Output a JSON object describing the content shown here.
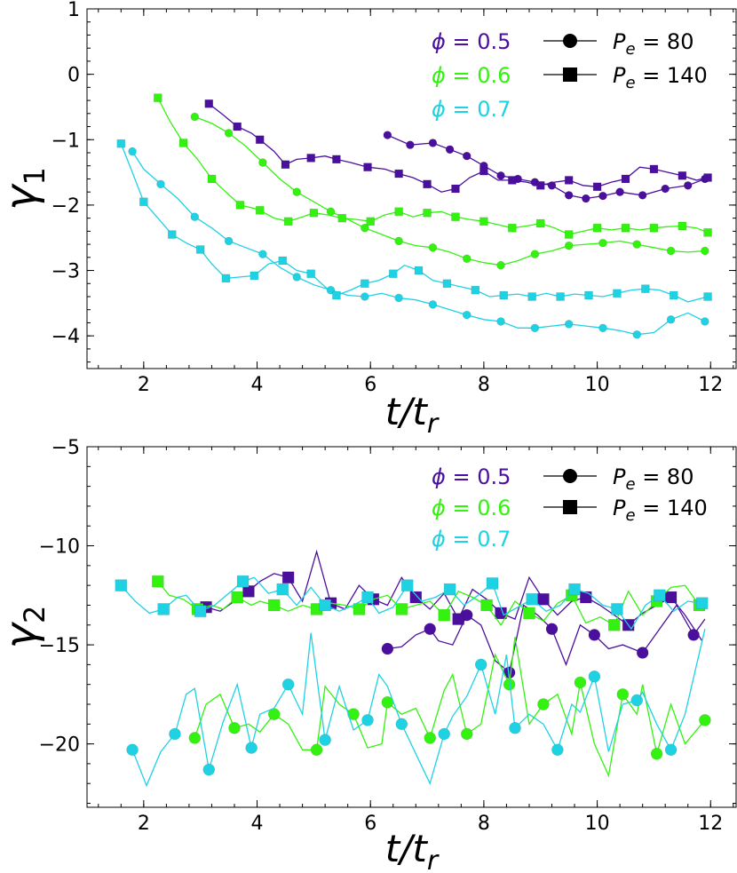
{
  "colors": {
    "phi_0_5": "#4b0f9e",
    "phi_0_6": "#33f20f",
    "phi_0_7": "#1ed2e3",
    "axis": "#000000"
  },
  "legend": {
    "phi_labels": [
      "ϕ = 0.5",
      "ϕ = 0.6",
      "ϕ = 0.7"
    ],
    "pe_labels": [
      "P_e = 80",
      "P_e = 140"
    ],
    "pe_markers": [
      "circle",
      "square"
    ]
  },
  "chart_data": [
    {
      "type": "line",
      "title": "",
      "xlabel": "t/t_r",
      "ylabel": "γ_1",
      "xlim": [
        1.0,
        12.45
      ],
      "ylim": [
        -4.5,
        1.0
      ],
      "xticks": [
        2,
        4,
        6,
        8,
        10,
        12
      ],
      "yticks": [
        1,
        0,
        -1,
        -2,
        -3,
        -4
      ],
      "series": [
        {
          "phi": "0.5",
          "pe": "80",
          "marker": "circle",
          "color": "#4b0f9e",
          "x": [
            6.3,
            6.7,
            7.1,
            7.4,
            7.7,
            8.0,
            8.3,
            8.6,
            8.9,
            9.2,
            9.5,
            9.8,
            10.1,
            10.4,
            10.8,
            11.2,
            11.6,
            11.9
          ],
          "y": [
            -0.93,
            -1.08,
            -1.05,
            -1.15,
            -1.25,
            -1.4,
            -1.55,
            -1.6,
            -1.65,
            -1.7,
            -1.85,
            -1.9,
            -1.86,
            -1.8,
            -1.85,
            -1.75,
            -1.7,
            -1.6
          ]
        },
        {
          "phi": "0.5",
          "pe": "140",
          "marker": "square",
          "color": "#4b0f9e",
          "x": [
            3.15,
            3.4,
            3.65,
            3.9,
            4.05,
            4.3,
            4.5,
            4.7,
            4.95,
            5.2,
            5.4,
            5.65,
            5.95,
            6.25,
            6.5,
            6.75,
            7.0,
            7.25,
            7.5,
            7.75,
            8.0,
            8.25,
            8.5,
            8.75,
            9.0,
            9.25,
            9.5,
            9.75,
            10.0,
            10.25,
            10.5,
            10.75,
            11.0,
            11.25,
            11.5,
            11.75,
            11.95
          ],
          "y": [
            -0.45,
            -0.62,
            -0.8,
            -0.9,
            -1.0,
            -1.18,
            -1.38,
            -1.3,
            -1.28,
            -1.25,
            -1.3,
            -1.35,
            -1.42,
            -1.45,
            -1.52,
            -1.58,
            -1.68,
            -1.8,
            -1.75,
            -1.58,
            -1.48,
            -1.62,
            -1.62,
            -1.65,
            -1.7,
            -1.65,
            -1.62,
            -1.7,
            -1.72,
            -1.65,
            -1.6,
            -1.42,
            -1.45,
            -1.5,
            -1.55,
            -1.62,
            -1.58
          ]
        },
        {
          "phi": "0.6",
          "pe": "80",
          "marker": "circle",
          "color": "#33f20f",
          "x": [
            2.9,
            3.2,
            3.5,
            3.8,
            4.1,
            4.4,
            4.7,
            5.0,
            5.3,
            5.6,
            5.9,
            6.2,
            6.5,
            6.8,
            7.1,
            7.4,
            7.7,
            8.0,
            8.3,
            8.6,
            8.9,
            9.2,
            9.5,
            9.8,
            10.1,
            10.4,
            10.7,
            11.0,
            11.3,
            11.6,
            11.9
          ],
          "y": [
            -0.65,
            -0.75,
            -0.9,
            -1.1,
            -1.35,
            -1.6,
            -1.8,
            -1.95,
            -2.1,
            -2.22,
            -2.35,
            -2.45,
            -2.55,
            -2.62,
            -2.65,
            -2.72,
            -2.82,
            -2.88,
            -2.92,
            -2.85,
            -2.75,
            -2.7,
            -2.62,
            -2.6,
            -2.58,
            -2.55,
            -2.6,
            -2.65,
            -2.7,
            -2.72,
            -2.7
          ]
        },
        {
          "phi": "0.6",
          "pe": "140",
          "marker": "square",
          "color": "#33f20f",
          "x": [
            2.25,
            2.45,
            2.7,
            2.95,
            3.2,
            3.45,
            3.7,
            3.95,
            4.05,
            4.3,
            4.55,
            4.8,
            5.0,
            5.25,
            5.5,
            5.75,
            6.0,
            6.25,
            6.5,
            6.75,
            7.0,
            7.25,
            7.5,
            7.75,
            8.0,
            8.25,
            8.5,
            8.75,
            9.0,
            9.25,
            9.5,
            9.75,
            10.0,
            10.25,
            10.5,
            10.75,
            11.0,
            11.25,
            11.5,
            11.75,
            11.95
          ],
          "y": [
            -0.36,
            -0.7,
            -1.05,
            -1.3,
            -1.6,
            -1.8,
            -2.0,
            -2.05,
            -2.08,
            -2.2,
            -2.25,
            -2.18,
            -2.12,
            -2.15,
            -2.2,
            -2.22,
            -2.25,
            -2.15,
            -2.1,
            -2.18,
            -2.12,
            -2.1,
            -2.18,
            -2.22,
            -2.25,
            -2.3,
            -2.35,
            -2.32,
            -2.28,
            -2.35,
            -2.45,
            -2.4,
            -2.35,
            -2.38,
            -2.35,
            -2.38,
            -2.35,
            -2.33,
            -2.32,
            -2.35,
            -2.42
          ]
        },
        {
          "phi": "0.7",
          "pe": "80",
          "marker": "circle",
          "color": "#1ed2e3",
          "x": [
            1.8,
            2.0,
            2.3,
            2.6,
            2.9,
            3.2,
            3.5,
            3.8,
            4.1,
            4.4,
            4.7,
            5.0,
            5.3,
            5.6,
            5.9,
            6.2,
            6.5,
            6.8,
            7.1,
            7.4,
            7.7,
            8.0,
            8.3,
            8.6,
            8.9,
            9.2,
            9.5,
            9.8,
            10.1,
            10.4,
            10.7,
            11.0,
            11.3,
            11.6,
            11.9
          ],
          "y": [
            -1.18,
            -1.45,
            -1.68,
            -1.9,
            -2.18,
            -2.35,
            -2.55,
            -2.65,
            -2.75,
            -2.95,
            -3.1,
            -3.22,
            -3.3,
            -3.38,
            -3.4,
            -3.35,
            -3.42,
            -3.45,
            -3.52,
            -3.6,
            -3.68,
            -3.75,
            -3.78,
            -3.88,
            -3.88,
            -3.85,
            -3.82,
            -3.85,
            -3.88,
            -3.92,
            -3.98,
            -3.95,
            -3.75,
            -3.65,
            -3.78
          ]
        },
        {
          "phi": "0.7",
          "pe": "140",
          "marker": "square",
          "color": "#1ed2e3",
          "x": [
            1.6,
            1.8,
            2.0,
            2.25,
            2.5,
            2.75,
            3.0,
            3.2,
            3.45,
            3.7,
            3.95,
            4.2,
            4.45,
            4.7,
            4.95,
            5.2,
            5.4,
            5.65,
            5.9,
            6.15,
            6.4,
            6.6,
            6.85,
            7.1,
            7.35,
            7.6,
            7.85,
            8.1,
            8.35,
            8.6,
            8.85,
            9.1,
            9.35,
            9.6,
            9.85,
            10.1,
            10.35,
            10.6,
            10.85,
            11.1,
            11.35,
            11.6,
            11.95
          ],
          "y": [
            -1.06,
            -1.5,
            -1.95,
            -2.2,
            -2.45,
            -2.58,
            -2.68,
            -2.9,
            -3.12,
            -3.1,
            -3.08,
            -2.9,
            -2.85,
            -3.0,
            -3.05,
            -3.25,
            -3.38,
            -3.3,
            -3.2,
            -3.15,
            -3.05,
            -2.92,
            -3.0,
            -3.15,
            -3.2,
            -3.25,
            -3.3,
            -3.4,
            -3.38,
            -3.36,
            -3.4,
            -3.35,
            -3.4,
            -3.36,
            -3.38,
            -3.4,
            -3.35,
            -3.3,
            -3.28,
            -3.3,
            -3.38,
            -3.48,
            -3.4
          ]
        }
      ]
    },
    {
      "type": "line",
      "title": "",
      "xlabel": "t/t_r",
      "ylabel": "γ_2",
      "xlim": [
        1.0,
        12.45
      ],
      "ylim": [
        -23.2,
        -5.0
      ],
      "xticks": [
        2,
        4,
        6,
        8,
        10,
        12
      ],
      "yticks": [
        -5,
        -10,
        -15,
        -20
      ],
      "series": [
        {
          "phi": "0.5",
          "pe": "80",
          "marker": "circle",
          "color": "#4b0f9e",
          "x": [
            6.3,
            6.55,
            6.8,
            7.05,
            7.2,
            7.45,
            7.7,
            7.95,
            8.2,
            8.45,
            8.7,
            8.95,
            9.2,
            9.45,
            9.7,
            9.95,
            10.2,
            10.45,
            10.8,
            11.1,
            11.4,
            11.7,
            11.9
          ],
          "y": [
            -15.2,
            -15.1,
            -14.5,
            -14.2,
            -14.8,
            -15.0,
            -13.5,
            -14.0,
            -15.8,
            -16.4,
            -13.0,
            -13.5,
            -14.2,
            -16.0,
            -14.0,
            -14.5,
            -15.2,
            -15.0,
            -15.4,
            -14.2,
            -13.0,
            -14.5,
            -13.7
          ]
        },
        {
          "phi": "0.5",
          "pe": "140",
          "marker": "square",
          "color": "#4b0f9e",
          "x": [
            3.1,
            3.35,
            3.6,
            3.85,
            4.05,
            4.3,
            4.55,
            4.8,
            5.05,
            5.3,
            5.55,
            5.8,
            6.05,
            6.3,
            6.55,
            6.8,
            7.05,
            7.3,
            7.55,
            7.8,
            8.05,
            8.3,
            8.55,
            8.8,
            9.05,
            9.3,
            9.55,
            9.8,
            10.05,
            10.3,
            10.55,
            10.8,
            11.05,
            11.3,
            11.55,
            11.85
          ],
          "y": [
            -13.1,
            -13.3,
            -12.8,
            -12.3,
            -11.8,
            -11.4,
            -11.6,
            -12.8,
            -10.3,
            -12.9,
            -13.2,
            -12.0,
            -12.7,
            -13.0,
            -11.6,
            -12.6,
            -13.2,
            -12.4,
            -13.7,
            -12.2,
            -12.7,
            -13.4,
            -13.7,
            -11.6,
            -12.7,
            -13.5,
            -12.8,
            -12.6,
            -13.0,
            -13.5,
            -14.0,
            -13.4,
            -13.0,
            -12.6,
            -13.5,
            -14.8
          ]
        },
        {
          "phi": "0.6",
          "pe": "80",
          "marker": "circle",
          "color": "#33f20f",
          "x": [
            2.9,
            3.1,
            3.35,
            3.6,
            3.85,
            4.05,
            4.3,
            4.55,
            4.8,
            5.05,
            5.2,
            5.45,
            5.7,
            5.95,
            6.2,
            6.3,
            6.55,
            6.8,
            7.05,
            7.3,
            7.45,
            7.7,
            7.95,
            8.2,
            8.45,
            8.55,
            8.8,
            9.05,
            9.3,
            9.55,
            9.7,
            9.95,
            10.2,
            10.45,
            10.7,
            10.8,
            11.05,
            11.3,
            11.55,
            11.9
          ],
          "y": [
            -19.7,
            -18.0,
            -17.5,
            -19.2,
            -19.0,
            -19.4,
            -18.5,
            -19.0,
            -20.3,
            -20.3,
            -17.1,
            -18.0,
            -18.5,
            -20.2,
            -20.0,
            -17.9,
            -18.5,
            -18.2,
            -19.7,
            -17.3,
            -16.5,
            -19.5,
            -19.0,
            -15.5,
            -17.0,
            -14.6,
            -19.0,
            -18.0,
            -17.5,
            -19.5,
            -16.9,
            -20.0,
            -21.6,
            -17.5,
            -18.5,
            -17.0,
            -20.5,
            -18.0,
            -20.0,
            -18.8
          ]
        },
        {
          "phi": "0.6",
          "pe": "140",
          "marker": "square",
          "color": "#33f20f",
          "x": [
            2.25,
            2.45,
            2.7,
            2.95,
            3.2,
            3.4,
            3.65,
            3.9,
            4.05,
            4.3,
            4.55,
            4.8,
            5.05,
            5.3,
            5.55,
            5.8,
            6.05,
            6.3,
            6.55,
            6.8,
            7.05,
            7.3,
            7.55,
            7.8,
            8.05,
            8.3,
            8.55,
            8.8,
            9.05,
            9.3,
            9.55,
            9.8,
            10.05,
            10.3,
            10.55,
            10.8,
            11.05,
            11.3,
            11.55,
            11.8
          ],
          "y": [
            -11.8,
            -12.5,
            -12.7,
            -13.2,
            -13.0,
            -13.2,
            -12.6,
            -13.0,
            -12.8,
            -13.0,
            -13.3,
            -13.0,
            -13.2,
            -12.9,
            -13.0,
            -13.2,
            -12.7,
            -12.5,
            -13.2,
            -13.0,
            -12.8,
            -13.5,
            -12.3,
            -12.6,
            -13.0,
            -14.0,
            -12.8,
            -13.4,
            -13.8,
            -12.9,
            -12.5,
            -13.9,
            -13.6,
            -14.0,
            -12.3,
            -13.5,
            -12.8,
            -12.1,
            -12.0,
            -13.0
          ]
        },
        {
          "phi": "0.7",
          "pe": "80",
          "marker": "circle",
          "color": "#1ed2e3",
          "x": [
            1.8,
            2.05,
            2.3,
            2.55,
            2.75,
            2.9,
            3.15,
            3.4,
            3.65,
            3.9,
            4.05,
            4.3,
            4.55,
            4.8,
            4.95,
            5.2,
            5.45,
            5.7,
            5.95,
            6.15,
            6.3,
            6.55,
            6.8,
            7.05,
            7.3,
            7.45,
            7.7,
            7.95,
            8.2,
            8.4,
            8.55,
            8.8,
            9.05,
            9.3,
            9.55,
            9.7,
            9.95,
            10.2,
            10.45,
            10.7,
            10.8,
            11.05,
            11.3,
            11.55,
            11.9
          ],
          "y": [
            -20.3,
            -22.1,
            -20.4,
            -19.5,
            -17.5,
            -17.2,
            -21.3,
            -18.9,
            -17.0,
            -20.2,
            -18.5,
            -18.2,
            -17.0,
            -18.5,
            -14.4,
            -19.8,
            -17.1,
            -19.3,
            -18.8,
            -16.5,
            -17.1,
            -19.0,
            -20.5,
            -22.0,
            -19.5,
            -18.6,
            -17.6,
            -16.0,
            -18.5,
            -15.5,
            -19.2,
            -18.5,
            -19.0,
            -20.3,
            -18.0,
            -18.4,
            -16.6,
            -20.4,
            -18.0,
            -17.8,
            -17.4,
            -19.0,
            -20.3,
            -18.5,
            -14.2
          ]
        },
        {
          "phi": "0.7",
          "pe": "140",
          "marker": "square",
          "color": "#1ed2e3",
          "x": [
            1.6,
            1.85,
            2.1,
            2.35,
            2.6,
            2.75,
            3.0,
            3.25,
            3.5,
            3.75,
            3.95,
            4.2,
            4.45,
            4.7,
            4.95,
            5.2,
            5.45,
            5.7,
            5.95,
            6.15,
            6.4,
            6.65,
            6.9,
            7.15,
            7.4,
            7.65,
            7.9,
            8.15,
            8.35,
            8.6,
            8.85,
            9.1,
            9.35,
            9.6,
            9.85,
            10.1,
            10.35,
            10.6,
            10.85,
            11.1,
            11.35,
            11.6,
            11.85
          ],
          "y": [
            -12.0,
            -12.8,
            -13.4,
            -13.2,
            -12.6,
            -12.5,
            -13.3,
            -13.0,
            -12.4,
            -11.8,
            -11.6,
            -12.4,
            -12.2,
            -13.0,
            -12.1,
            -13.0,
            -13.3,
            -13.0,
            -12.6,
            -13.4,
            -13.1,
            -12.0,
            -12.8,
            -12.6,
            -12.2,
            -13.0,
            -12.5,
            -11.9,
            -13.5,
            -13.1,
            -12.7,
            -13.3,
            -13.0,
            -12.2,
            -12.4,
            -13.0,
            -13.2,
            -14.2,
            -13.0,
            -12.5,
            -13.3,
            -12.8,
            -12.9
          ]
        }
      ]
    }
  ]
}
